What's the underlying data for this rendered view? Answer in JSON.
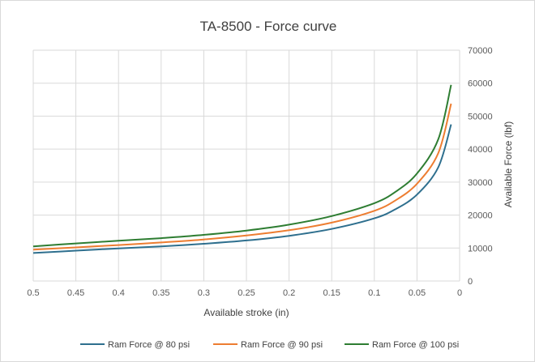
{
  "chart_data": {
    "type": "line",
    "title": "TA-8500 - Force curve",
    "xlabel": "Available stroke (in)",
    "ylabel": "Available Force (lbf)",
    "xlim": [
      0.5,
      0
    ],
    "ylim": [
      0,
      70000
    ],
    "x_reversed": true,
    "y_axis_side": "right",
    "grid": true,
    "legend_position": "bottom",
    "x_ticks": [
      "0.5",
      "0.45",
      "0.4",
      "0.35",
      "0.3",
      "0.25",
      "0.2",
      "0.15",
      "0.1",
      "0.05",
      "0"
    ],
    "y_ticks": [
      "0",
      "10000",
      "20000",
      "30000",
      "40000",
      "50000",
      "60000",
      "70000"
    ],
    "x": [
      0.5,
      0.45,
      0.4,
      0.35,
      0.3,
      0.25,
      0.2,
      0.15,
      0.1,
      0.075,
      0.05,
      0.025,
      0.01
    ],
    "series": [
      {
        "name": "Ram Force @ 80 psi",
        "color": "#2e6f8e",
        "values": [
          8500,
          9200,
          9900,
          10500,
          11300,
          12300,
          13700,
          15800,
          19000,
          21800,
          26200,
          34500,
          47500
        ]
      },
      {
        "name": "Ram Force @ 90 psi",
        "color": "#ed7d31",
        "values": [
          9500,
          10200,
          10900,
          11700,
          12600,
          13800,
          15400,
          17700,
          21300,
          24500,
          29500,
          38800,
          53800
        ]
      },
      {
        "name": "Ram Force @ 100 psi",
        "color": "#2e7d32",
        "values": [
          10500,
          11400,
          12200,
          13000,
          14000,
          15300,
          17100,
          19700,
          23600,
          27100,
          32600,
          43000,
          59500
        ]
      }
    ]
  }
}
